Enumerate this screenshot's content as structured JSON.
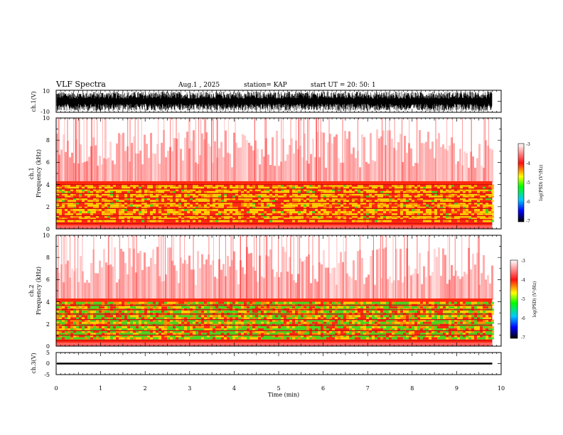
{
  "header": {
    "title": "VLF Spectra",
    "date": "Aug.1 , 2025",
    "station": "station= KAP",
    "start": "start UT = 20: 50: 1"
  },
  "colorbar": {
    "label": "log(PSD) (V²/Hz)",
    "ticks": [
      "-3",
      "-4",
      "-5",
      "-6",
      "-7"
    ],
    "colors": [
      "#ffffff",
      "#ff2020",
      "#ffff00",
      "#00ff00",
      "#00ccff",
      "#0000ff",
      "#000000"
    ]
  },
  "chart_data": [
    {
      "type": "line",
      "name": "ch1-waveform",
      "ylabel": "ch.1(V)",
      "ylim": [
        -10,
        10
      ],
      "yticks": [
        "10",
        "-10"
      ],
      "xlim": [
        0,
        10
      ]
    },
    {
      "type": "heatmap",
      "name": "ch1-spectrogram",
      "ylabel": "ch.1 Frequency (kHz)",
      "ylabel_line1": "ch.1",
      "ylabel_line2": "Frequency (kHz)",
      "ylim": [
        0,
        10
      ],
      "yticks": [
        "0",
        "2",
        "4",
        "6",
        "8",
        "10"
      ],
      "color_scale": [
        -7,
        -3
      ],
      "bands_khz": [
        0.5,
        0.85,
        1.2,
        1.85,
        2.4,
        2.8,
        3.2,
        3.6,
        4.0
      ],
      "x_end_min": 9.8
    },
    {
      "type": "heatmap",
      "name": "ch2-spectrogram",
      "ylabel": "ch.2 Frequency (kHz)",
      "ylabel_line1": "ch.2",
      "ylabel_line2": "Frequency (kHz)",
      "ylim": [
        0,
        10
      ],
      "yticks": [
        "0",
        "2",
        "4",
        "6",
        "8",
        "10"
      ],
      "color_scale": [
        -7,
        -3
      ],
      "bands_khz": [
        0.5,
        1.0,
        1.4,
        1.9,
        2.4,
        2.9,
        3.3,
        3.7
      ],
      "x_end_min": 9.8
    },
    {
      "type": "line",
      "name": "ch3-waveform",
      "ylabel": "ch.3(V)",
      "ylim": [
        -5,
        5
      ],
      "yticks": [
        "5",
        "0",
        "-5"
      ],
      "xlim": [
        0,
        10
      ]
    }
  ],
  "xaxis": {
    "label": "Time (min)",
    "ticks": [
      "0",
      "1",
      "2",
      "3",
      "4",
      "5",
      "6",
      "7",
      "8",
      "9",
      "10"
    ],
    "range": [
      0,
      10
    ]
  }
}
